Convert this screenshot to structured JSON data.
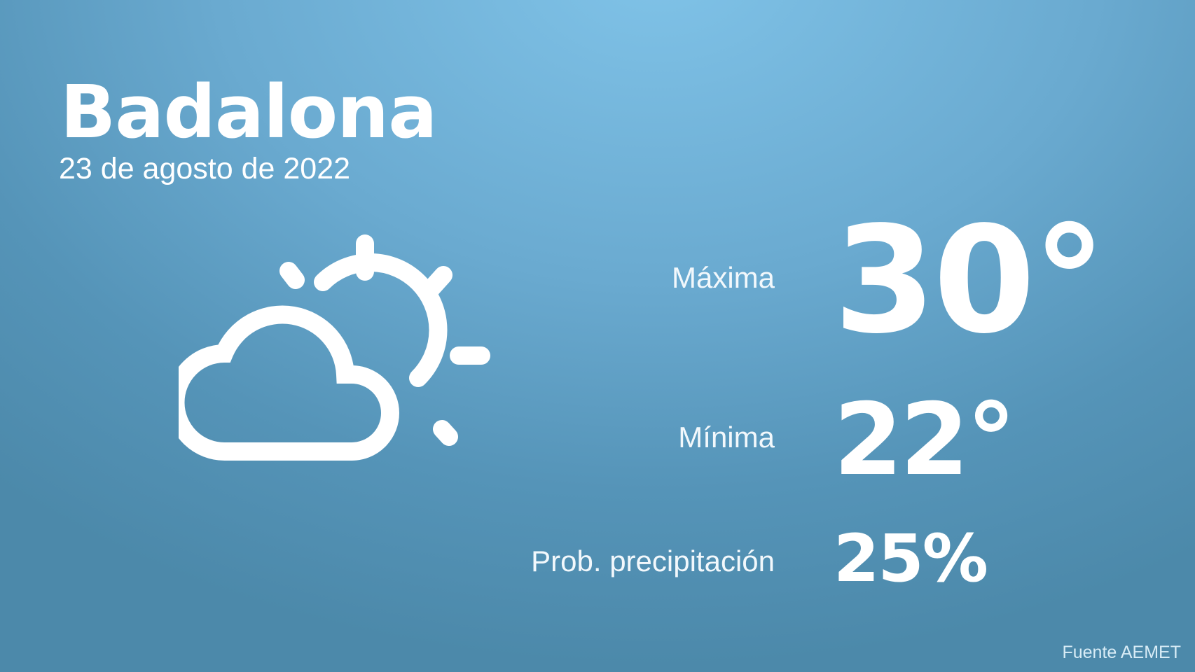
{
  "location": {
    "city": "Badalona",
    "date": "23 de agosto de 2022"
  },
  "weather": {
    "icon": "partly-cloudy-icon",
    "max_label": "Máxima",
    "max_value": "30°",
    "min_label": "Mínima",
    "min_value": "22°",
    "precip_label": "Prob. precipitación",
    "precip_value": "25%"
  },
  "source": "Fuente AEMET",
  "colors": {
    "background_top": "#80c3e8",
    "background_bottom": "#4c89aa",
    "text": "#ffffff"
  }
}
